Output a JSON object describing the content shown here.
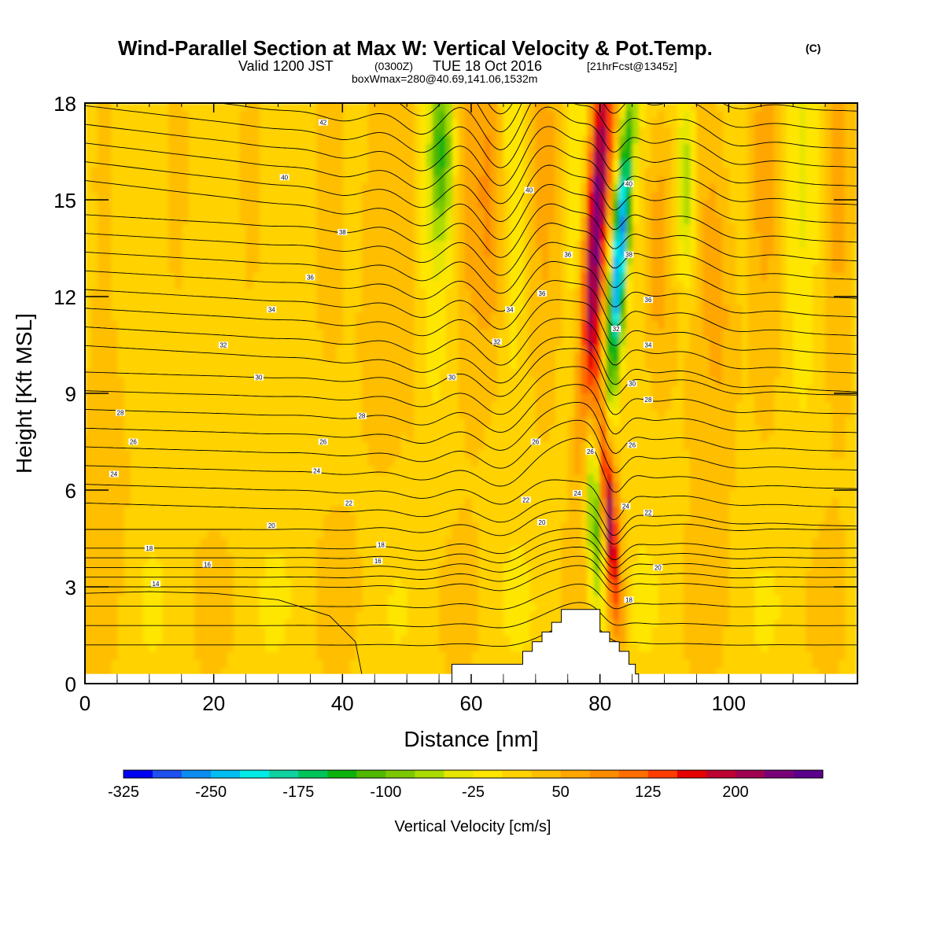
{
  "chart_data": {
    "type": "heatmap",
    "title": "Wind-Parallel Section at Max W: Vertical Velocity & Pot.Temp.",
    "title_mark": "(C)",
    "subtitle": {
      "valid": "Valid 1200 JST",
      "utc": "(0300Z)",
      "date": "TUE 18 Oct 2016",
      "forecast": "[21hrFcst@1345z]"
    },
    "box_info": "boxWmax=280@40.69,141.06,1532m",
    "xlabel": "Distance [nm]",
    "ylabel": "Height [Kft MSL]",
    "xlim": [
      0,
      120
    ],
    "ylim": [
      0,
      18
    ],
    "x_ticks": [
      "0",
      "20",
      "40",
      "60",
      "80",
      "100"
    ],
    "y_ticks": [
      "0",
      "3",
      "6",
      "9",
      "12",
      "15",
      "18"
    ],
    "colorbar": {
      "title": "Vertical Velocity [cm/s]",
      "tick_labels": [
        "-325",
        "-250",
        "-175",
        "-100",
        "-25",
        "50",
        "125",
        "200"
      ],
      "tick_values": [
        -325,
        -250,
        -175,
        -100,
        -25,
        50,
        125,
        200
      ],
      "min": -325,
      "step": 25,
      "colors": [
        "#0000f0",
        "#1e50f0",
        "#0a8cf0",
        "#00bef0",
        "#00ebe6",
        "#10d2a0",
        "#00c45a",
        "#0cb30c",
        "#50b800",
        "#7cc800",
        "#aadc00",
        "#e6e600",
        "#ffe600",
        "#ffd200",
        "#ffbe00",
        "#ffa600",
        "#ff8c00",
        "#ff6e00",
        "#ff3c00",
        "#e60000",
        "#be0032",
        "#a00050",
        "#780078",
        "#5a008c"
      ]
    },
    "contour_field": "Potential temperature (C)",
    "contour_labels": [
      {
        "value": "42",
        "x": 37,
        "y": 17.4
      },
      {
        "value": "40",
        "x": 31,
        "y": 15.7
      },
      {
        "value": "40",
        "x": 69,
        "y": 15.3
      },
      {
        "value": "40",
        "x": 84.5,
        "y": 15.5
      },
      {
        "value": "38",
        "x": 40,
        "y": 14.0
      },
      {
        "value": "36",
        "x": 35,
        "y": 12.6
      },
      {
        "value": "36",
        "x": 75,
        "y": 13.3
      },
      {
        "value": "38",
        "x": 84.5,
        "y": 13.3
      },
      {
        "value": "34",
        "x": 29,
        "y": 11.6
      },
      {
        "value": "36",
        "x": 71,
        "y": 12.1
      },
      {
        "value": "34",
        "x": 66,
        "y": 11.6
      },
      {
        "value": "36",
        "x": 87.5,
        "y": 11.9
      },
      {
        "value": "32",
        "x": 21.5,
        "y": 10.5
      },
      {
        "value": "32",
        "x": 64,
        "y": 10.6
      },
      {
        "value": "32",
        "x": 82.5,
        "y": 11.0
      },
      {
        "value": "34",
        "x": 87.5,
        "y": 10.5
      },
      {
        "value": "30",
        "x": 27,
        "y": 9.5
      },
      {
        "value": "30",
        "x": 57,
        "y": 9.5
      },
      {
        "value": "30",
        "x": 85,
        "y": 9.3
      },
      {
        "value": "28",
        "x": 5.5,
        "y": 8.4
      },
      {
        "value": "28",
        "x": 43,
        "y": 8.3
      },
      {
        "value": "28",
        "x": 87.5,
        "y": 8.8
      },
      {
        "value": "26",
        "x": 7.5,
        "y": 7.5
      },
      {
        "value": "26",
        "x": 37,
        "y": 7.5
      },
      {
        "value": "26",
        "x": 70,
        "y": 7.5
      },
      {
        "value": "26",
        "x": 78.5,
        "y": 7.2
      },
      {
        "value": "26",
        "x": 85,
        "y": 7.4
      },
      {
        "value": "24",
        "x": 4.5,
        "y": 6.5
      },
      {
        "value": "24",
        "x": 36,
        "y": 6.6
      },
      {
        "value": "22",
        "x": 41,
        "y": 5.6
      },
      {
        "value": "22",
        "x": 68.5,
        "y": 5.7
      },
      {
        "value": "24",
        "x": 76.5,
        "y": 5.9
      },
      {
        "value": "24",
        "x": 84,
        "y": 5.5
      },
      {
        "value": "22",
        "x": 87.5,
        "y": 5.3
      },
      {
        "value": "20",
        "x": 29,
        "y": 4.9
      },
      {
        "value": "20",
        "x": 71,
        "y": 5.0
      },
      {
        "value": "20",
        "x": 89,
        "y": 3.6
      },
      {
        "value": "18",
        "x": 10,
        "y": 4.2
      },
      {
        "value": "18",
        "x": 46,
        "y": 4.3
      },
      {
        "value": "16",
        "x": 19,
        "y": 3.7
      },
      {
        "value": "16",
        "x": 45.5,
        "y": 3.8
      },
      {
        "value": "14",
        "x": 11,
        "y": 3.1
      },
      {
        "value": "18",
        "x": 84.5,
        "y": 2.6
      }
    ],
    "terrain_profile": [
      [
        57,
        0.6
      ],
      [
        68,
        0.6
      ],
      [
        68,
        1.0
      ],
      [
        69.5,
        1.0
      ],
      [
        69.5,
        1.3
      ],
      [
        71,
        1.3
      ],
      [
        71,
        1.6
      ],
      [
        72.5,
        1.6
      ],
      [
        72.5,
        1.9
      ],
      [
        74,
        1.9
      ],
      [
        74,
        2.3
      ],
      [
        80,
        2.3
      ],
      [
        80,
        1.6
      ],
      [
        81.5,
        1.6
      ],
      [
        81.5,
        1.3
      ],
      [
        83,
        1.3
      ],
      [
        83,
        1.0
      ],
      [
        84.5,
        1.0
      ],
      [
        84.5,
        0.6
      ],
      [
        85.5,
        0.6
      ],
      [
        85.5,
        0.3
      ],
      [
        86,
        0.3
      ]
    ]
  }
}
